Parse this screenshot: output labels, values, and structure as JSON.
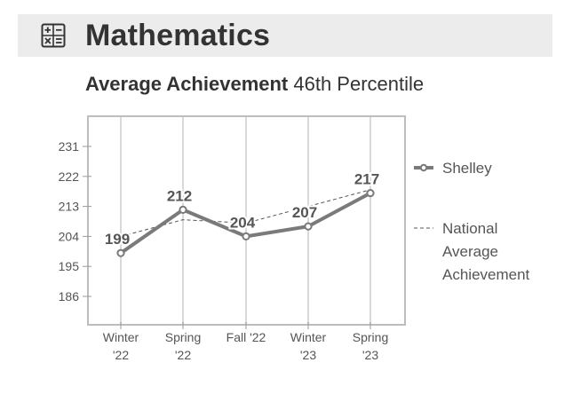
{
  "header": {
    "title": "Mathematics",
    "icon": "calculator-icon"
  },
  "subtitle": {
    "bold": "Average Achievement",
    "rest": "46th Percentile"
  },
  "colors": {
    "header_bg": "#ececec",
    "series_line": "#7a7a7a",
    "national_line": "#555555",
    "grid": "#d9d9d9",
    "frame": "#bdbdbd"
  },
  "chart_data": {
    "type": "line",
    "categories": [
      [
        "Winter",
        "'22"
      ],
      [
        "Spring",
        "'22"
      ],
      [
        "Fall '22"
      ],
      [
        "Winter",
        "'23"
      ],
      [
        "Spring",
        "'23"
      ]
    ],
    "y_ticks": [
      186,
      195,
      204,
      213,
      222,
      231
    ],
    "ylim": [
      176,
      240
    ],
    "grid": "vertical",
    "legend_position": "right",
    "series": [
      {
        "name": "Shelley",
        "style": "solid-thick-markers",
        "values": [
          199,
          212,
          204,
          207,
          217
        ],
        "labels": [
          "199",
          "212",
          "204",
          "207",
          "217"
        ]
      },
      {
        "name": "National Average Achievement",
        "style": "dashed",
        "values": [
          204,
          209,
          208,
          213,
          218
        ]
      }
    ],
    "legend": [
      {
        "lines": [
          "Shelley"
        ]
      },
      {
        "lines": [
          "National",
          "Average",
          "Achievement"
        ]
      }
    ]
  }
}
